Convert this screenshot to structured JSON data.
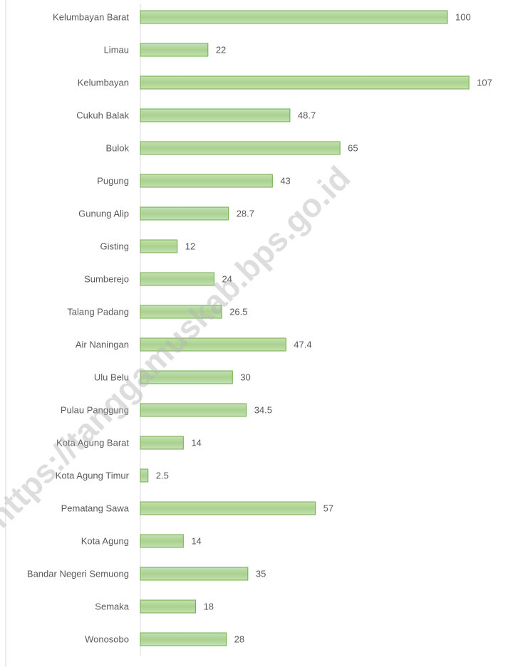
{
  "chart_data": {
    "type": "bar",
    "orientation": "horizontal",
    "categories": [
      "Kelumbayan Barat",
      "Limau",
      "Kelumbayan",
      "Cukuh Balak",
      "Bulok",
      "Pugung",
      "Gunung Alip",
      "Gisting",
      "Sumberejo",
      "Talang Padang",
      "Air Naningan",
      "Ulu Belu",
      "Pulau Panggung",
      "Kota Agung Barat",
      "Kota Agung Timur",
      "Pematang Sawa",
      "Kota Agung",
      "Bandar Negeri Semuong",
      "Semaka",
      "Wonosobo"
    ],
    "values": [
      100,
      22,
      107,
      48.7,
      65,
      43,
      28.7,
      12,
      24,
      26.5,
      47.4,
      30,
      34.5,
      14,
      2.5,
      57,
      14,
      35,
      18,
      28
    ],
    "color": "#a9d18e",
    "border_color": "#70ad47",
    "xlim": [
      0,
      120
    ],
    "watermark": "https://tanggamuskab.bps.go.id"
  }
}
